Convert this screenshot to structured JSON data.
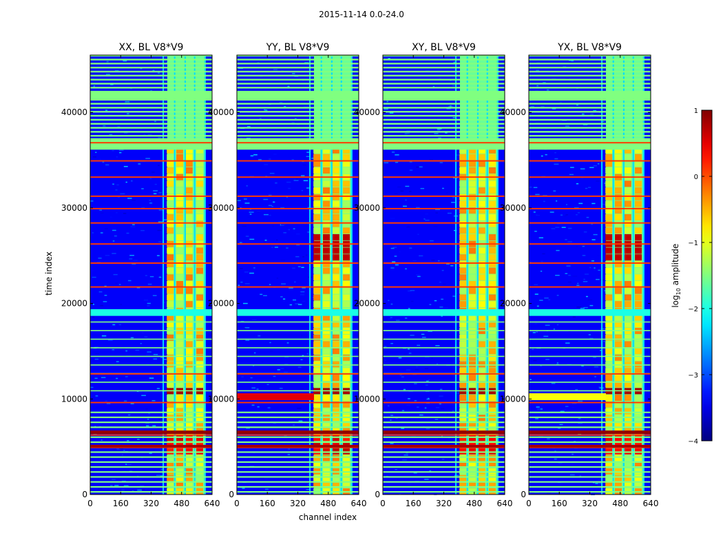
{
  "figure": {
    "suptitle": "2015-11-14 0.0-24.0",
    "xlabel": "channel index",
    "ylabel": "time index",
    "colorbar_label_prefix": "log",
    "colorbar_label_sub": "10",
    "colorbar_label_suffix": " amplitude"
  },
  "chart_data": {
    "type": "heatmap",
    "panels": [
      {
        "title": "XX, BL V8*V9",
        "pol": "XX"
      },
      {
        "title": "YY, BL V8*V9",
        "pol": "YY"
      },
      {
        "title": "XY, BL V8*V9",
        "pol": "XY"
      },
      {
        "title": "YX, BL V8*V9",
        "pol": "YX"
      }
    ],
    "xlim": [
      0,
      640
    ],
    "ylim": [
      0,
      46000
    ],
    "xticks": [
      0,
      160,
      320,
      480,
      640
    ],
    "yticks": [
      0,
      10000,
      20000,
      30000,
      40000
    ],
    "colorbar": {
      "min": -4,
      "max": 1,
      "ticks": [
        1,
        0,
        -1,
        -2,
        -3,
        -4
      ],
      "tick_labels": [
        "1",
        "0",
        "−1",
        "−2",
        "−3",
        "−4"
      ]
    },
    "colormap": "jet",
    "description_values": {
      "active_band_channels": [
        405,
        600
      ],
      "flagged_value_log10": -1.5,
      "background_value_log10": -3.4,
      "strong_rfi_channels": [
        420,
        470,
        520,
        575
      ],
      "flagged_time_rows": [
        36500,
        37200,
        41500,
        42100,
        19000,
        4800,
        6500
      ]
    }
  }
}
